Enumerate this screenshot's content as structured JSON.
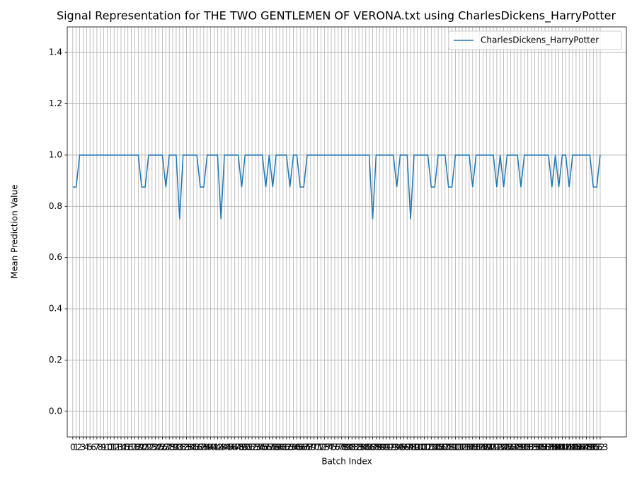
{
  "chart_data": {
    "type": "line",
    "title": "Signal Representation for THE TWO GENTLEMEN OF VERONA.txt using CharlesDickens_HarryPotter",
    "xlabel": "Batch Index",
    "ylabel": "Mean Prediction Value",
    "x": [
      0,
      1,
      2,
      3,
      4,
      5,
      6,
      7,
      8,
      9,
      10,
      11,
      12,
      13,
      14,
      15,
      16,
      17,
      18,
      19,
      20,
      21,
      22,
      23,
      24,
      25,
      26,
      27,
      28,
      29,
      30,
      31,
      32,
      33,
      34,
      35,
      36,
      37,
      38,
      39,
      40,
      41,
      42,
      43,
      44,
      45,
      46,
      47,
      48,
      49,
      50,
      51,
      52,
      53,
      54,
      55,
      56,
      57,
      58,
      59,
      60,
      61,
      62,
      63,
      64,
      65,
      66,
      67,
      68,
      69,
      70,
      71,
      72,
      73,
      74,
      75,
      76,
      77,
      78,
      79,
      80,
      81,
      82,
      83,
      84,
      85,
      86,
      87,
      88,
      89,
      90,
      91,
      92,
      93,
      94,
      95,
      96,
      97,
      98,
      99,
      100,
      101,
      102,
      103,
      104,
      105,
      106,
      107,
      108,
      109,
      110,
      111,
      112,
      113,
      114,
      115,
      116,
      117,
      118,
      119,
      120,
      121,
      122,
      123,
      124,
      125,
      126,
      127,
      128,
      129,
      130,
      131,
      132,
      133,
      134,
      135,
      136,
      137,
      138,
      139,
      140,
      141,
      142,
      143,
      144,
      145,
      146,
      147,
      148,
      149,
      150,
      151,
      152,
      153
    ],
    "series": [
      {
        "name": "CharlesDickens_HarryPotter",
        "color": "#1f77b4",
        "values": [
          0.875,
          0.875,
          1,
          1,
          1,
          1,
          1,
          1,
          1,
          1,
          1,
          1,
          1,
          1,
          1,
          1,
          1,
          1,
          1,
          1,
          0.875,
          0.875,
          1,
          1,
          1,
          1,
          1,
          0.875,
          1,
          1,
          1,
          0.75,
          1,
          1,
          1,
          1,
          1,
          0.875,
          0.875,
          1,
          1,
          1,
          1,
          0.75,
          1,
          1,
          1,
          1,
          1,
          0.875,
          1,
          1,
          1,
          1,
          1,
          1,
          0.875,
          1,
          0.875,
          1,
          1,
          1,
          1,
          0.875,
          1,
          1,
          0.875,
          0.875,
          1,
          1,
          1,
          1,
          1,
          1,
          1,
          1,
          1,
          1,
          1,
          1,
          1,
          1,
          1,
          1,
          1,
          1,
          1,
          0.75,
          1,
          1,
          1,
          1,
          1,
          1,
          0.875,
          1,
          1,
          1,
          0.75,
          1,
          1,
          1,
          1,
          1,
          0.875,
          0.875,
          1,
          1,
          1,
          0.875,
          0.875,
          1,
          1,
          1,
          1,
          1,
          0.875,
          1,
          1,
          1,
          1,
          1,
          1,
          0.875,
          1,
          0.875,
          1,
          1,
          1,
          1,
          0.875,
          1,
          1,
          1,
          1,
          1,
          1,
          1,
          1,
          0.875,
          1,
          0.875,
          1,
          1,
          0.875,
          1,
          1,
          1,
          1,
          1,
          1,
          0.875,
          0.875,
          1
        ]
      }
    ],
    "xlim": [
      -1.6,
      160.6
    ],
    "xticks": [
      0,
      1,
      2,
      3,
      4,
      5,
      6,
      7,
      8,
      9,
      10,
      11,
      12,
      13,
      14,
      15,
      16,
      17,
      18,
      19,
      20,
      21,
      22,
      23,
      24,
      25,
      26,
      27,
      28,
      29,
      30,
      31,
      32,
      33,
      34,
      35,
      36,
      37,
      38,
      39,
      40,
      41,
      42,
      43,
      44,
      45,
      46,
      47,
      48,
      49,
      50,
      51,
      52,
      53,
      54,
      55,
      56,
      57,
      58,
      59,
      60,
      61,
      62,
      63,
      64,
      65,
      66,
      67,
      68,
      69,
      70,
      71,
      72,
      73,
      74,
      75,
      76,
      77,
      78,
      79,
      80,
      81,
      82,
      83,
      84,
      85,
      86,
      87,
      88,
      89,
      90,
      91,
      92,
      93,
      94,
      95,
      96,
      97,
      98,
      99,
      100,
      101,
      102,
      103,
      104,
      105,
      106,
      107,
      108,
      109,
      110,
      111,
      112,
      113,
      114,
      115,
      116,
      117,
      118,
      119,
      120,
      121,
      122,
      123,
      124,
      125,
      126,
      127,
      128,
      129,
      130,
      131,
      132,
      133,
      134,
      135,
      136,
      137,
      138,
      139,
      140,
      141,
      142,
      143,
      144,
      145,
      146,
      147,
      148,
      149,
      150,
      151,
      152,
      153
    ],
    "ylim": [
      -0.1,
      1.5
    ],
    "yticks": [
      {
        "value": 0,
        "label": "0.0"
      },
      0.2,
      0.4,
      0.6,
      0.8,
      {
        "value": 1,
        "label": "1.0"
      },
      1.2,
      1.4
    ],
    "grid": true,
    "legend": "upper right"
  }
}
